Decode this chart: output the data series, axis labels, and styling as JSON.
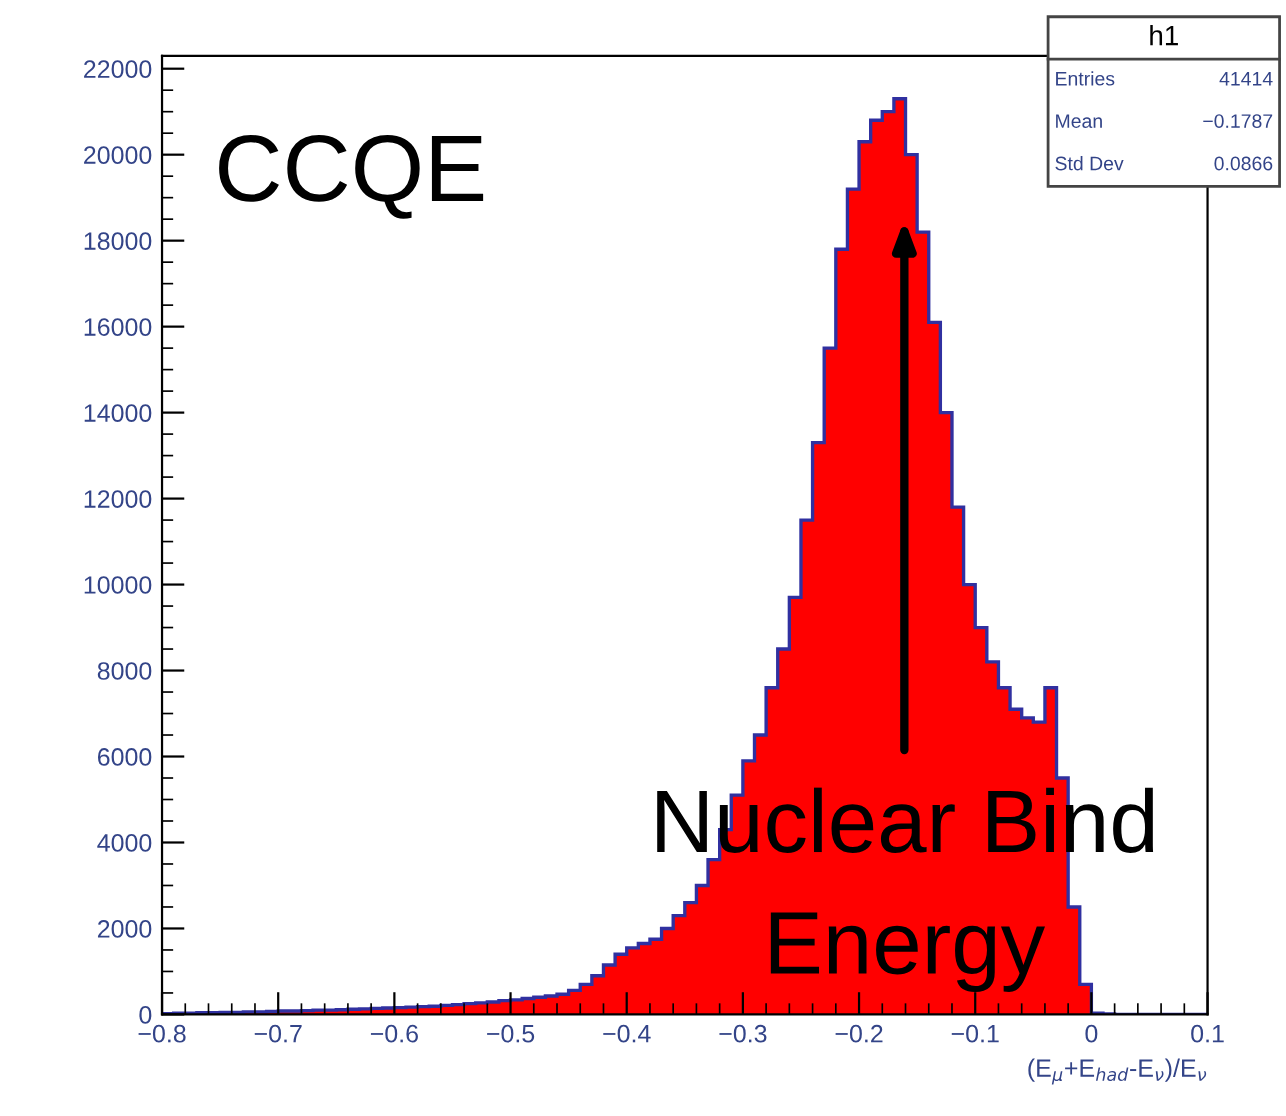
{
  "chart_data": {
    "type": "histogram",
    "xlabel": "(E$_{μ}$+E$_{had}$-E$_{ν}$)/E$_{ν}$",
    "bins": [
      -0.8,
      -0.79,
      -0.78,
      -0.77,
      -0.76,
      -0.75,
      -0.74,
      -0.73,
      -0.72,
      -0.71,
      -0.7,
      -0.69,
      -0.68,
      -0.67,
      -0.66,
      -0.65,
      -0.64,
      -0.63,
      -0.62,
      -0.61,
      -0.6,
      -0.59,
      -0.58,
      -0.57,
      -0.56,
      -0.55,
      -0.54,
      -0.53,
      -0.52,
      -0.51,
      -0.5,
      -0.49,
      -0.48,
      -0.47,
      -0.46,
      -0.45,
      -0.44,
      -0.43,
      -0.42,
      -0.41,
      -0.4,
      -0.39,
      -0.38,
      -0.37,
      -0.36,
      -0.35,
      -0.34,
      -0.33,
      -0.32,
      -0.31,
      -0.3,
      -0.29,
      -0.28,
      -0.27,
      -0.26,
      -0.25,
      -0.24,
      -0.23,
      -0.22,
      -0.21,
      -0.2,
      -0.19,
      -0.18,
      -0.17,
      -0.16,
      -0.15,
      -0.14,
      -0.13,
      -0.12,
      -0.11,
      -0.1,
      -0.09,
      -0.08,
      -0.07,
      -0.06,
      -0.05,
      -0.04,
      -0.03,
      -0.02,
      -0.01,
      0.0,
      0.01,
      0.02,
      0.03,
      0.04,
      0.05,
      0.06,
      0.07,
      0.08,
      0.09,
      0.1
    ],
    "values": [
      20,
      30,
      30,
      40,
      40,
      50,
      50,
      60,
      60,
      70,
      80,
      80,
      90,
      100,
      100,
      110,
      120,
      130,
      140,
      150,
      160,
      170,
      180,
      190,
      210,
      230,
      250,
      270,
      290,
      320,
      340,
      370,
      400,
      430,
      470,
      560,
      700,
      900,
      1150,
      1400,
      1550,
      1650,
      1750,
      2000,
      2300,
      2600,
      3000,
      3600,
      4300,
      5100,
      5900,
      6500,
      7600,
      8500,
      9700,
      11500,
      13300,
      15500,
      17800,
      19200,
      20300,
      20800,
      21000,
      21300,
      20000,
      18200,
      16100,
      14000,
      11800,
      10000,
      9000,
      8200,
      7600,
      7100,
      6900,
      6800,
      7600,
      5500,
      2500,
      700,
      30,
      10,
      0,
      0,
      0,
      0,
      0,
      0,
      0,
      0
    ],
    "color": "#ff0000",
    "xlim": [
      -0.8,
      0.1
    ],
    "xticks": [
      {
        "value": -0.8,
        "label": "−0.8"
      },
      {
        "value": -0.7,
        "label": "−0.7"
      },
      {
        "value": -0.6,
        "label": "−0.6"
      },
      {
        "value": -0.5,
        "label": "−0.5"
      },
      {
        "value": -0.4,
        "label": "−0.4"
      },
      {
        "value": -0.3,
        "label": "−0.3"
      },
      {
        "value": -0.2,
        "label": "−0.2"
      },
      {
        "value": -0.1,
        "label": "−0.1"
      },
      0,
      0.1
    ],
    "ylim": [
      0,
      22300
    ],
    "yticks": [
      0,
      2000,
      4000,
      6000,
      8000,
      10000,
      12000,
      14000,
      16000,
      18000,
      20000,
      22000
    ],
    "grid": false,
    "legend": false,
    "annotations": [
      "CCQE",
      "Nuclear Bind\nEnergy",
      "h1",
      "Entries",
      "41414",
      "Mean",
      "−0.1787",
      "Std Dev",
      "0.0866"
    ]
  }
}
